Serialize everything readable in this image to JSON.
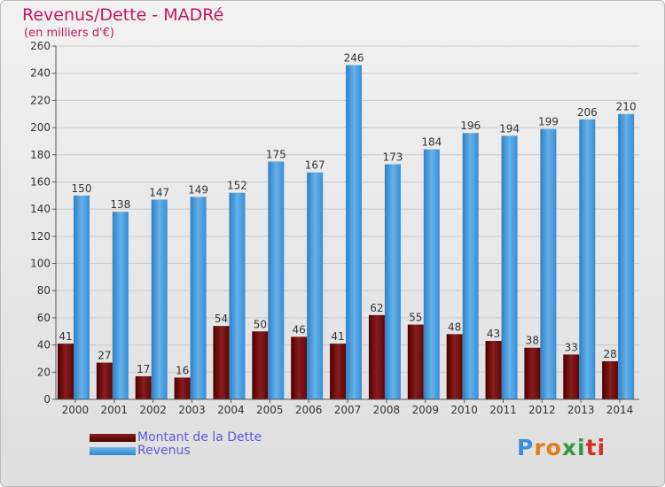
{
  "chart_data": {
    "type": "bar",
    "title": "Revenus/Dette - MADRé",
    "subtitle": "(en milliers d'€)",
    "categories": [
      "2000",
      "2001",
      "2002",
      "2003",
      "2004",
      "2005",
      "2006",
      "2007",
      "2008",
      "2009",
      "2010",
      "2011",
      "2012",
      "2013",
      "2014"
    ],
    "series": [
      {
        "name": "Montant de la Dette",
        "values": [
          41,
          27,
          17,
          16,
          54,
          50,
          46,
          41,
          62,
          55,
          48,
          43,
          38,
          33,
          28
        ],
        "color": "#6b0f0f"
      },
      {
        "name": "Revenus",
        "values": [
          150,
          138,
          147,
          149,
          152,
          175,
          167,
          246,
          173,
          184,
          196,
          194,
          199,
          206,
          210
        ],
        "color": "#4ea1e0"
      }
    ],
    "ylim": [
      0,
      260
    ],
    "yticks": [
      0,
      20,
      40,
      60,
      80,
      100,
      120,
      140,
      160,
      180,
      200,
      220,
      240,
      260
    ],
    "grid": true,
    "legend": "bottom-left"
  },
  "logo": {
    "letters": [
      "P",
      "r",
      "o",
      "x",
      "i",
      "t",
      "i"
    ],
    "colors": [
      "#3b8fd8",
      "#e07b16",
      "#e07b16",
      "#2f9b3a",
      "#2f9b3a",
      "#d62d2d",
      "#d62d2d"
    ]
  },
  "colors": {
    "title": "#c0185d",
    "legend_text": "#5b5bd6",
    "axis_text": "#333333"
  }
}
